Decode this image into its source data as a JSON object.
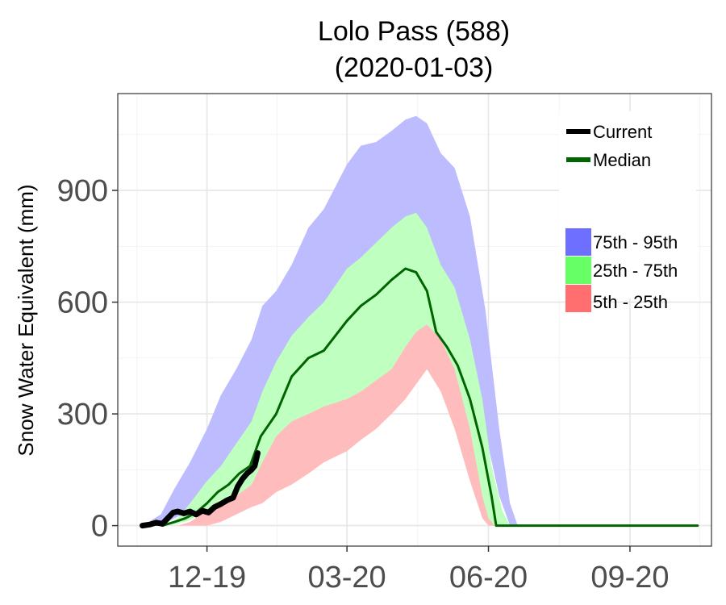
{
  "chart_data": {
    "type": "area",
    "title": [
      "Lolo Pass (588)",
      "(2020-01-03)"
    ],
    "ylabel": "Snow Water Equivalent (mm)",
    "xlabel": "",
    "x_axis": {
      "ticks": [
        "2019-12-01",
        "2020-03-01",
        "2020-06-01",
        "2020-09-01"
      ],
      "tick_labels": [
        "12-19",
        "03-20",
        "06-20",
        "09-20"
      ],
      "range": [
        "2019-10-04",
        "2020-10-24"
      ]
    },
    "y_axis": {
      "ticks": [
        0,
        300,
        600,
        900
      ],
      "tick_labels": [
        "0",
        "300",
        "600",
        "900"
      ],
      "range": [
        -55,
        1160
      ]
    },
    "grid": true,
    "legend": {
      "placement": "top-right",
      "lines": [
        {
          "label": "Current",
          "color": "#000000"
        },
        {
          "label": "Median",
          "color": "#006400"
        }
      ],
      "bands": [
        {
          "label": "75th - 95th",
          "color": "#6f6fff"
        },
        {
          "label": "25th - 75th",
          "color": "#66ff66"
        },
        {
          "label": "5th - 25th",
          "color": "#ff6f6f"
        }
      ]
    },
    "colors": {
      "band_75_95": "#bcbcff",
      "band_25_75": "#bfffbf",
      "band_5_25": "#ffbcbc",
      "median": "#006400",
      "current": "#000000"
    },
    "series": [
      {
        "name": "Current",
        "x": [
          "2019-10-20",
          "2019-10-25",
          "2019-10-29",
          "2019-11-02",
          "2019-11-06",
          "2019-11-09",
          "2019-11-12",
          "2019-11-16",
          "2019-11-20",
          "2019-11-24",
          "2019-11-28",
          "2019-12-02",
          "2019-12-06",
          "2019-12-10",
          "2019-12-14",
          "2019-12-18",
          "2019-12-21",
          "2019-12-24",
          "2019-12-27",
          "2019-12-30",
          "2020-01-01",
          "2020-01-03"
        ],
        "values": [
          0,
          3,
          8,
          5,
          22,
          35,
          38,
          33,
          38,
          30,
          40,
          35,
          50,
          58,
          68,
          75,
          105,
          125,
          140,
          150,
          160,
          195
        ]
      },
      {
        "name": "Median",
        "x": [
          "2019-11-02",
          "2019-11-10",
          "2019-11-17",
          "2019-11-24",
          "2019-12-01",
          "2019-12-08",
          "2019-12-15",
          "2019-12-22",
          "2019-12-29",
          "2020-01-05",
          "2020-01-15",
          "2020-01-25",
          "2020-02-05",
          "2020-02-15",
          "2020-03-01",
          "2020-03-10",
          "2020-03-20",
          "2020-03-30",
          "2020-04-08",
          "2020-04-15",
          "2020-04-22",
          "2020-04-28",
          "2020-05-05",
          "2020-05-12",
          "2020-05-20",
          "2020-05-28",
          "2020-06-03",
          "2020-06-06",
          "2020-06-15",
          "2020-07-15",
          "2020-08-15",
          "2020-09-15",
          "2020-10-15"
        ],
        "values": [
          0,
          10,
          20,
          35,
          60,
          90,
          110,
          140,
          160,
          240,
          300,
          400,
          450,
          470,
          550,
          590,
          620,
          660,
          690,
          680,
          630,
          520,
          480,
          430,
          340,
          210,
          80,
          0,
          0,
          0,
          0,
          0,
          0
        ]
      }
    ],
    "bands": [
      {
        "name": "75th - 95th",
        "x": [
          "2019-10-20",
          "2019-11-01",
          "2019-11-10",
          "2019-11-20",
          "2019-12-01",
          "2019-12-10",
          "2019-12-20",
          "2019-12-30",
          "2020-01-06",
          "2020-01-15",
          "2020-01-25",
          "2020-02-05",
          "2020-02-15",
          "2020-03-01",
          "2020-03-10",
          "2020-03-20",
          "2020-03-30",
          "2020-04-08",
          "2020-04-15",
          "2020-04-22",
          "2020-05-01",
          "2020-05-10",
          "2020-05-20",
          "2020-05-30",
          "2020-06-08",
          "2020-06-15",
          "2020-06-20"
        ],
        "lower": [
          0,
          0,
          20,
          40,
          70,
          100,
          130,
          170,
          260,
          320,
          400,
          460,
          490,
          570,
          620,
          660,
          700,
          720,
          730,
          700,
          620,
          520,
          420,
          250,
          80,
          0,
          0
        ],
        "upper": [
          0,
          30,
          100,
          170,
          260,
          350,
          420,
          500,
          590,
          630,
          700,
          800,
          850,
          970,
          1020,
          1030,
          1060,
          1090,
          1100,
          1080,
          1000,
          960,
          830,
          580,
          260,
          60,
          0
        ]
      },
      {
        "name": "25th - 75th",
        "x": [
          "2019-11-03",
          "2019-11-12",
          "2019-11-20",
          "2019-12-01",
          "2019-12-10",
          "2019-12-20",
          "2019-12-30",
          "2020-01-06",
          "2020-01-15",
          "2020-01-25",
          "2020-02-05",
          "2020-02-15",
          "2020-03-01",
          "2020-03-10",
          "2020-03-20",
          "2020-03-30",
          "2020-04-08",
          "2020-04-15",
          "2020-04-22",
          "2020-05-01",
          "2020-05-10",
          "2020-05-20",
          "2020-05-28",
          "2020-06-03",
          "2020-06-10",
          "2020-06-15"
        ],
        "lower": [
          0,
          5,
          15,
          40,
          60,
          80,
          110,
          170,
          240,
          280,
          300,
          320,
          340,
          360,
          390,
          420,
          480,
          500,
          490,
          420,
          300,
          150,
          30,
          0,
          0,
          0
        ],
        "upper": [
          0,
          20,
          60,
          120,
          160,
          220,
          280,
          360,
          440,
          510,
          560,
          600,
          690,
          720,
          760,
          800,
          830,
          840,
          800,
          700,
          640,
          500,
          340,
          160,
          40,
          0
        ]
      },
      {
        "name": "5th - 25th",
        "x": [
          "2019-11-12",
          "2019-11-20",
          "2019-12-01",
          "2019-12-10",
          "2019-12-20",
          "2019-12-30",
          "2020-01-06",
          "2020-01-15",
          "2020-01-25",
          "2020-02-05",
          "2020-02-15",
          "2020-03-01",
          "2020-03-10",
          "2020-03-20",
          "2020-03-30",
          "2020-04-08",
          "2020-04-15",
          "2020-04-22",
          "2020-05-01",
          "2020-05-10",
          "2020-05-20",
          "2020-05-28",
          "2020-06-01",
          "2020-06-05"
        ],
        "lower": [
          0,
          0,
          0,
          10,
          30,
          50,
          60,
          90,
          110,
          140,
          170,
          200,
          230,
          260,
          300,
          340,
          380,
          420,
          360,
          260,
          120,
          20,
          0,
          0
        ],
        "upper": [
          0,
          10,
          40,
          60,
          80,
          110,
          170,
          240,
          280,
          300,
          320,
          340,
          360,
          390,
          420,
          480,
          520,
          540,
          500,
          420,
          260,
          80,
          20,
          0
        ]
      }
    ]
  }
}
